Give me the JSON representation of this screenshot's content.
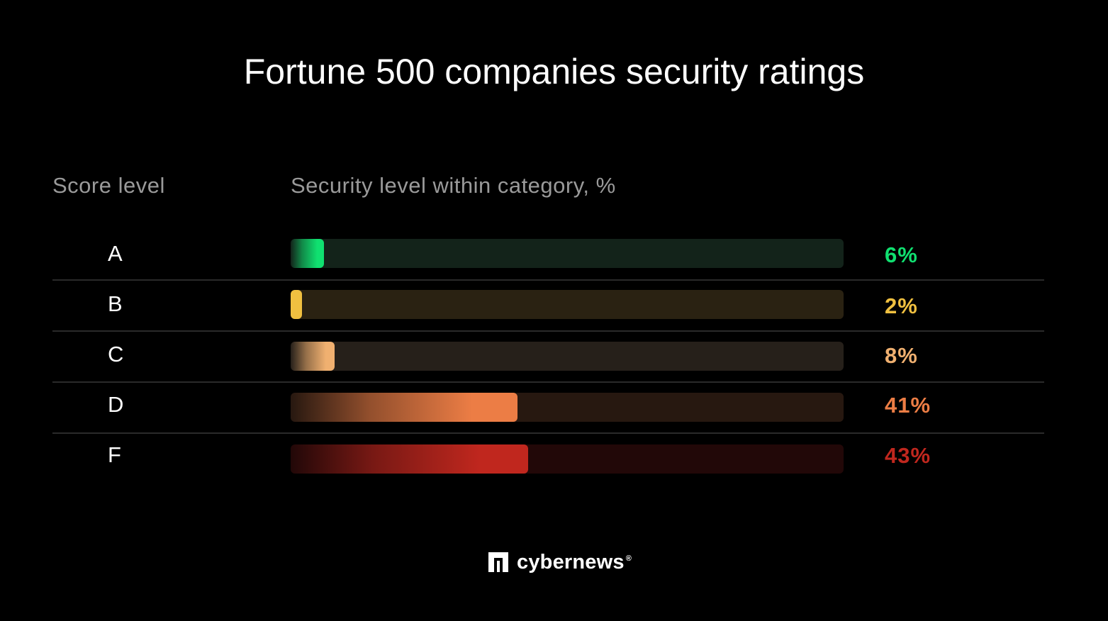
{
  "title": "Fortune 500 companies security ratings",
  "columns": {
    "score": "Score level",
    "level": "Security level within category, %"
  },
  "chart_data": {
    "type": "bar",
    "categories": [
      "A",
      "B",
      "C",
      "D",
      "F"
    ],
    "values": [
      6,
      2,
      8,
      41,
      43
    ],
    "labels": [
      "6%",
      "2%",
      "8%",
      "41%",
      "43%"
    ],
    "xlim": [
      0,
      100
    ],
    "colors": [
      "#10e070",
      "#f0c040",
      "#f0b070",
      "#ec7d45",
      "#c0271e"
    ],
    "track_colors": [
      "#13231a",
      "#2a2212",
      "#26201a",
      "#271810",
      "#220808"
    ]
  },
  "brand": {
    "name": "cybernews",
    "registered": "®"
  }
}
